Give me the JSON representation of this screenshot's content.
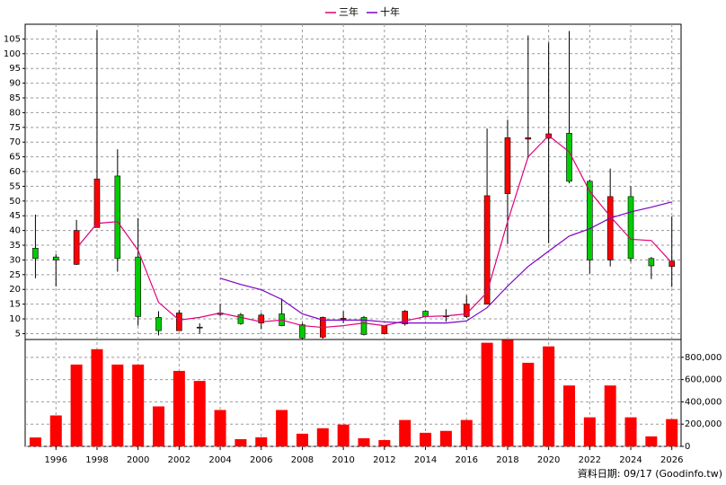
{
  "chart_data": [
    {
      "type": "candlestick",
      "x": [
        1995,
        1996,
        1997,
        1998,
        1999,
        2000,
        2001,
        2002,
        2003,
        2004,
        2005,
        2006,
        2007,
        2008,
        2009,
        2010,
        2011,
        2012,
        2013,
        2014,
        2015,
        2016,
        2017,
        2018,
        2019,
        2020,
        2021,
        2022,
        2023,
        2024,
        2025,
        2026
      ],
      "open": [
        34,
        31,
        28.5,
        41,
        58.5,
        31,
        10.5,
        6,
        7,
        11.5,
        11.4,
        8.6,
        11.7,
        8,
        3.8,
        10,
        10.5,
        5,
        8.3,
        12.6,
        10.8,
        10.8,
        15,
        52.5,
        71,
        71.3,
        73,
        56.7,
        30,
        51.5,
        30.5,
        27.8
      ],
      "high": [
        45.4,
        32,
        43.6,
        108,
        67.6,
        44.2,
        12.6,
        13,
        8.5,
        15,
        12,
        12,
        16.9,
        8.6,
        10.8,
        12.6,
        11,
        7.7,
        13,
        12.9,
        13.3,
        18,
        74.6,
        77.6,
        106.2,
        103.8,
        107.7,
        57.3,
        61,
        55,
        31,
        44.8
      ],
      "low": [
        23.8,
        21,
        28.3,
        41,
        26,
        7.7,
        4.4,
        6,
        5,
        11,
        8,
        6.5,
        7.5,
        3,
        3.3,
        8.6,
        4.4,
        4.7,
        7.7,
        10.5,
        9,
        10.3,
        15,
        35.4,
        64.6,
        35.7,
        56,
        25.4,
        27.8,
        29.3,
        23.5,
        20.8
      ],
      "close": [
        30.5,
        30,
        40,
        57.5,
        30.5,
        10.8,
        6,
        12,
        7.2,
        12,
        8.4,
        11.3,
        7.7,
        3.5,
        10.5,
        10.2,
        4.7,
        7.7,
        12.6,
        10.8,
        11,
        15,
        51.8,
        71.5,
        71.5,
        72.8,
        56.7,
        30,
        51.5,
        30.5,
        28,
        29.6
      ],
      "up_color": "#ff0000",
      "down_color": "#00cc00",
      "series": [
        {
          "name": "三年",
          "color": "#e0007a",
          "values": [
            null,
            null,
            34,
            42.4,
            43,
            33.3,
            15.6,
            9.6,
            10.5,
            12,
            10.5,
            9,
            9.6,
            7.7,
            7.1,
            7.7,
            8.6,
            7.7,
            9.3,
            10.8,
            11,
            11.7,
            19,
            43,
            65,
            72.2,
            66.7,
            53.3,
            44.8,
            37,
            36.6,
            29
          ]
        },
        {
          "name": "十年",
          "color": "#7a00c8",
          "values": [
            null,
            null,
            null,
            null,
            null,
            null,
            null,
            null,
            null,
            23.8,
            21.7,
            19.9,
            16.6,
            11.7,
            9.6,
            9.6,
            9.6,
            9,
            8.6,
            8.6,
            8.6,
            9.3,
            13.8,
            21.1,
            27.8,
            33,
            38.1,
            40.6,
            44.2,
            46.3,
            47.9,
            49.7
          ]
        }
      ],
      "xlim": [
        1994.5,
        2026.45
      ],
      "xticks": [
        1996,
        1998,
        2000,
        2002,
        2004,
        2006,
        2008,
        2010,
        2012,
        2014,
        2016,
        2018,
        2020,
        2022,
        2024,
        2026
      ],
      "ylim": [
        3,
        110
      ],
      "yticks": [
        5,
        10,
        15,
        20,
        25,
        30,
        35,
        40,
        45,
        50,
        55,
        60,
        65,
        70,
        75,
        80,
        85,
        90,
        95,
        100,
        105
      ],
      "grid": true
    },
    {
      "type": "bar",
      "x": [
        1995,
        1996,
        1997,
        1998,
        1999,
        2000,
        2001,
        2002,
        2003,
        2004,
        2005,
        2006,
        2007,
        2008,
        2009,
        2010,
        2011,
        2012,
        2013,
        2014,
        2015,
        2016,
        2017,
        2018,
        2019,
        2020,
        2021,
        2022,
        2023,
        2024,
        2025,
        2026
      ],
      "values": [
        80000,
        278000,
        735000,
        873000,
        735000,
        735000,
        359000,
        678000,
        588000,
        327000,
        65000,
        82000,
        327000,
        114000,
        163000,
        196000,
        73000,
        57000,
        237000,
        122000,
        139000,
        237000,
        931000,
        955000,
        751000,
        898000,
        547000,
        261000,
        547000,
        261000,
        90000,
        245000
      ],
      "color": "#ff0000",
      "xlim": [
        1994.5,
        2026.45
      ],
      "ylim": [
        0,
        960000
      ],
      "yticks": [
        0,
        {
          "value": 200000,
          "label": "200,000"
        },
        {
          "value": 400000,
          "label": "400,000"
        },
        {
          "value": 600000,
          "label": "600,000"
        },
        {
          "value": 800000,
          "label": "800,000"
        }
      ],
      "grid": true
    }
  ],
  "footer": "資料日期: 09/17 (Goodinfo.tw)"
}
